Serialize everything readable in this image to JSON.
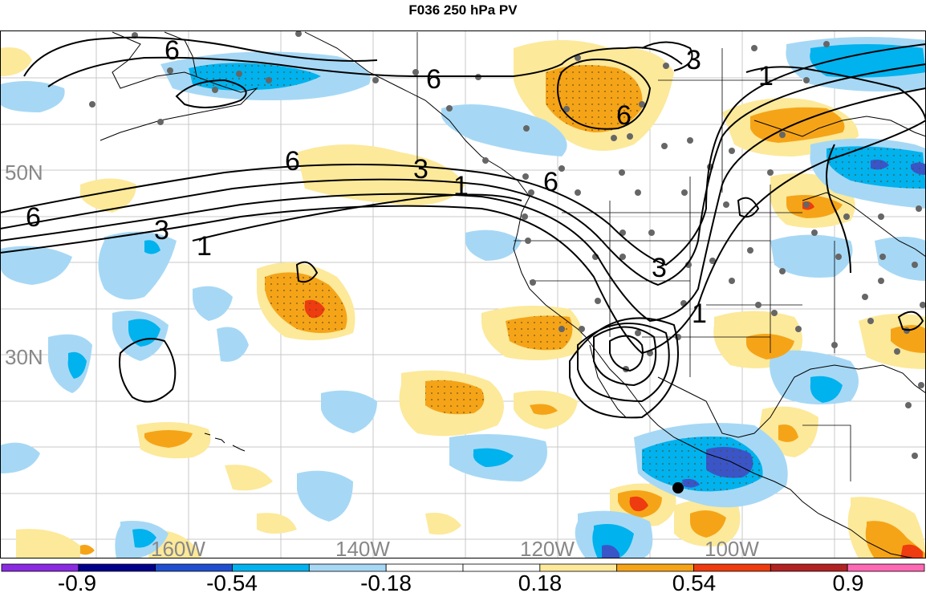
{
  "title": "F036 250 hPa PV",
  "latitude_labels": [
    "50N",
    "30N"
  ],
  "longitude_labels": [
    "160W",
    "140W",
    "120W",
    "100W"
  ],
  "contour_values": [
    "6",
    "3",
    "1"
  ],
  "colorbar": {
    "tick_labels": [
      "-0.9",
      "-0.54",
      "-0.18",
      "0.18",
      "0.54",
      "0.9"
    ],
    "colors": [
      "#8a2be2",
      "#00008b",
      "#1f4fd0",
      "#00b2ee",
      "#a6d8f5",
      "#ffffff",
      "#ffffff",
      "#fce99a",
      "#f5a418",
      "#ee3b10",
      "#b22222",
      "#ff69b4"
    ]
  },
  "colors": {
    "positive_light": "#fce99a",
    "positive_mid": "#f5a418",
    "positive_strong": "#ee3b10",
    "negative_light": "#a6d8f5",
    "negative_mid": "#00b2ee",
    "negative_strong": "#3a55c8",
    "station_dot": "#666666"
  }
}
